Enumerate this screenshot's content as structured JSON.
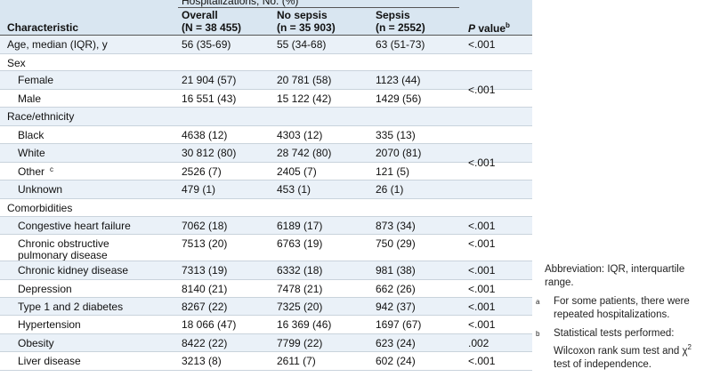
{
  "header": {
    "group_label": "Hospitalizations, No. (%)",
    "characteristic": "Characteristic",
    "overall_title": "Overall",
    "overall_n": "(N = 38 455)",
    "nosepsis_title": "No sepsis",
    "nosepsis_n": "(n = 35 903)",
    "sepsis_title": "Sepsis",
    "sepsis_n": "(n = 2552)",
    "p_label": "P",
    "p_suffix": " value",
    "p_sup": "b"
  },
  "rows": [
    {
      "label": "Age, median (IQR), y",
      "overall": "56 (35-69)",
      "nosepsis": "55 (34-68)",
      "sepsis": "63 (51-73)",
      "p": "<.001"
    },
    {
      "label": "Sex",
      "overall": "",
      "nosepsis": "",
      "sepsis": "",
      "p": ""
    },
    {
      "label": "Female",
      "overall": "21 904 (57)",
      "nosepsis": "20 781 (58)",
      "sepsis": "1123 (44)",
      "p": ""
    },
    {
      "label": "Male",
      "overall": "16 551 (43)",
      "nosepsis": "15 122 (42)",
      "sepsis": "1429 (56)",
      "p": ""
    },
    {
      "label": "Race/ethnicity",
      "overall": "",
      "nosepsis": "",
      "sepsis": "",
      "p": ""
    },
    {
      "label": "Black",
      "overall": "4638 (12)",
      "nosepsis": "4303 (12)",
      "sepsis": "335 (13)",
      "p": ""
    },
    {
      "label": "White",
      "overall": "30 812 (80)",
      "nosepsis": "28 742 (80)",
      "sepsis": "2070 (81)",
      "p": ""
    },
    {
      "label": "Other",
      "sup": "c",
      "overall": "2526 (7)",
      "nosepsis": "2405 (7)",
      "sepsis": "121 (5)",
      "p": ""
    },
    {
      "label": "Unknown",
      "overall": "479 (1)",
      "nosepsis": "453 (1)",
      "sepsis": "26 (1)",
      "p": ""
    },
    {
      "label": "Comorbidities",
      "overall": "",
      "nosepsis": "",
      "sepsis": "",
      "p": ""
    },
    {
      "label": "Congestive heart failure",
      "overall": "7062 (18)",
      "nosepsis": "6189 (17)",
      "sepsis": "873 (34)",
      "p": "<.001"
    },
    {
      "label": "Chronic obstructive",
      "label2": "pulmonary disease",
      "overall": "7513 (20)",
      "nosepsis": "6763 (19)",
      "sepsis": "750 (29)",
      "p": "<.001"
    },
    {
      "label": "Chronic kidney disease",
      "overall": "7313 (19)",
      "nosepsis": "6332 (18)",
      "sepsis": "981 (38)",
      "p": "<.001"
    },
    {
      "label": "Depression",
      "overall": "8140 (21)",
      "nosepsis": "7478 (21)",
      "sepsis": "662 (26)",
      "p": "<.001"
    },
    {
      "label": "Type 1 and 2 diabetes",
      "overall": "8267 (22)",
      "nosepsis": "7325 (20)",
      "sepsis": "942 (37)",
      "p": "<.001"
    },
    {
      "label": "Hypertension",
      "overall": "18 066 (47)",
      "nosepsis": "16 369 (46)",
      "sepsis": "1697 (67)",
      "p": "<.001"
    },
    {
      "label": "Obesity",
      "overall": "8422 (22)",
      "nosepsis": "7799 (22)",
      "sepsis": "623 (24)",
      "p": ".002"
    },
    {
      "label": "Liver disease",
      "overall": "3213 (8)",
      "nosepsis": "2611 (7)",
      "sepsis": "602 (24)",
      "p": "<.001"
    }
  ],
  "merged_p": {
    "sex": "<.001",
    "race": "<.001"
  },
  "notes": {
    "abbreviation": "Abbreviation: IQR, interquartile range.",
    "a_mark": "a",
    "a_text": "For some patients, there were repeated hospitalizations.",
    "b_mark": "b",
    "b_text_1": "Statistical tests performed: Wilcoxon rank sum test and χ",
    "b_sup": "2",
    "b_text_2": " test of independence."
  }
}
